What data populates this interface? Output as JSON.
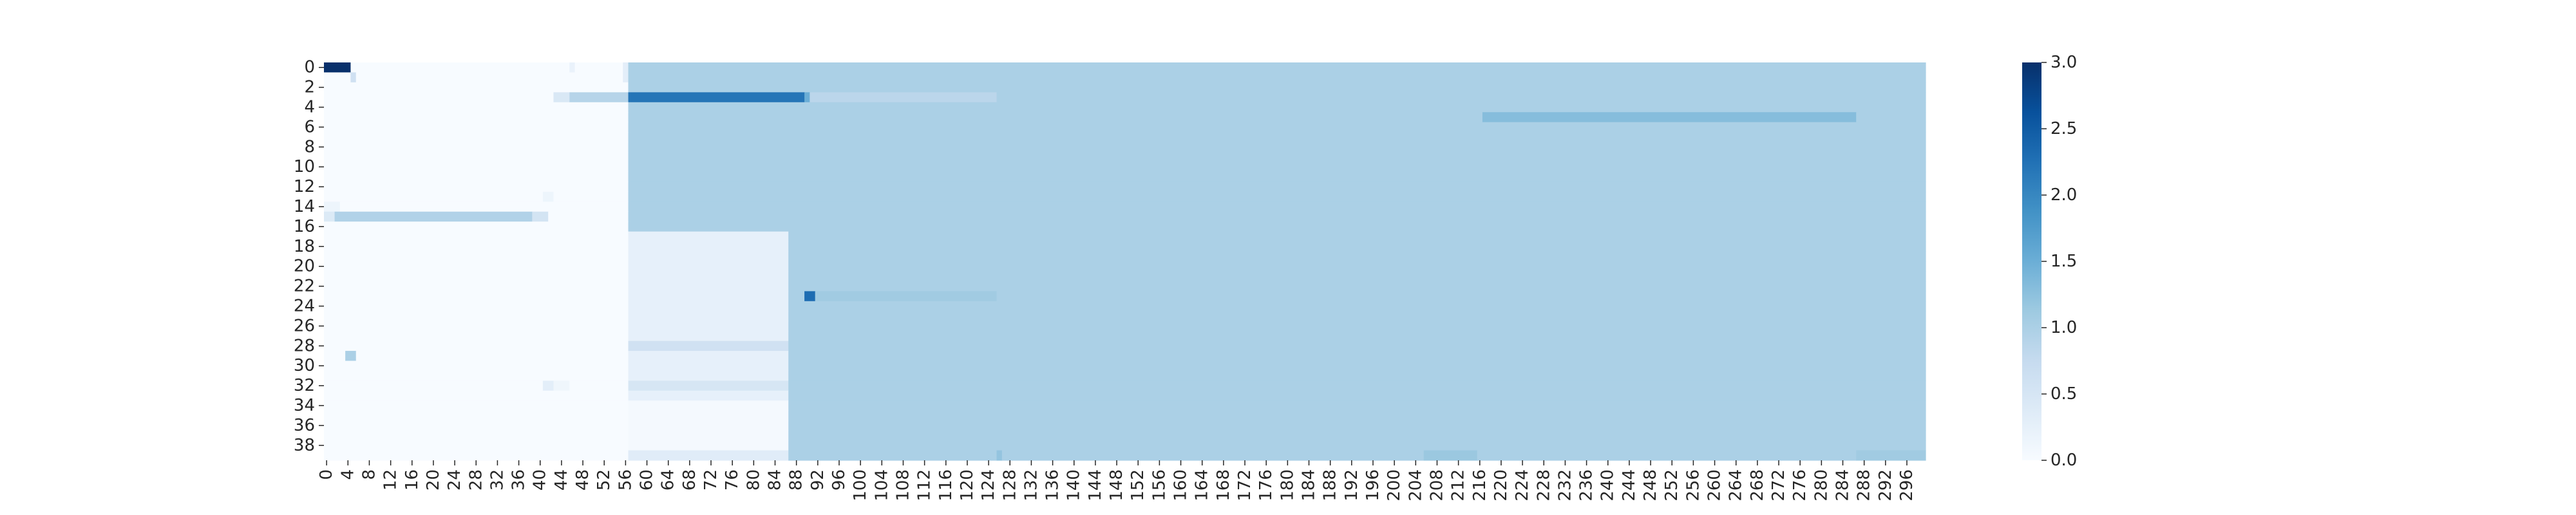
{
  "chart_data": {
    "type": "heatmap",
    "title": "",
    "xlabel": "",
    "ylabel": "",
    "n_rows": 40,
    "n_cols": 300,
    "y_ticks": [
      "0",
      "2",
      "4",
      "6",
      "8",
      "10",
      "12",
      "14",
      "16",
      "18",
      "20",
      "22",
      "24",
      "26",
      "28",
      "30",
      "32",
      "34",
      "36",
      "38"
    ],
    "x_ticks": [
      "0",
      "4",
      "8",
      "12",
      "16",
      "20",
      "24",
      "28",
      "32",
      "36",
      "40",
      "44",
      "48",
      "52",
      "56",
      "60",
      "64",
      "68",
      "72",
      "76",
      "80",
      "84",
      "88",
      "92",
      "96",
      "100",
      "104",
      "108",
      "112",
      "116",
      "120",
      "124",
      "128",
      "132",
      "136",
      "140",
      "144",
      "148",
      "152",
      "156",
      "160",
      "164",
      "168",
      "172",
      "176",
      "180",
      "184",
      "188",
      "192",
      "196",
      "200",
      "204",
      "208",
      "212",
      "216",
      "220",
      "224",
      "228",
      "232",
      "236",
      "240",
      "244",
      "248",
      "252",
      "256",
      "260",
      "264",
      "268",
      "272",
      "276",
      "280",
      "284",
      "288",
      "292",
      "296"
    ],
    "colorbar": {
      "range": [
        0,
        3
      ],
      "ticks": [
        "0.0",
        "0.5",
        "1.0",
        "1.5",
        "2.0",
        "2.5",
        "3.0"
      ],
      "colormap": "Blues"
    },
    "background_value": 0.0,
    "blocks": [
      {
        "rows": [
          0,
          39
        ],
        "cols": [
          57,
          299
        ],
        "value": 1.0
      },
      {
        "rows": [
          17,
          39
        ],
        "cols": [
          57,
          86
        ],
        "value": 0.25
      },
      {
        "rows": [
          34,
          38
        ],
        "cols": [
          57,
          86
        ],
        "value": 0.05
      },
      {
        "rows": [
          39,
          39
        ],
        "cols": [
          57,
          86
        ],
        "value": 0.35
      },
      {
        "rows": [
          28,
          28
        ],
        "cols": [
          57,
          86
        ],
        "value": 0.6
      },
      {
        "rows": [
          32,
          32
        ],
        "cols": [
          57,
          86
        ],
        "value": 0.5
      },
      {
        "rows": [
          0,
          0
        ],
        "cols": [
          0,
          4
        ],
        "value": 3.0
      },
      {
        "rows": [
          1,
          1
        ],
        "cols": [
          5,
          5
        ],
        "value": 0.6
      },
      {
        "rows": [
          0,
          0
        ],
        "cols": [
          46,
          46
        ],
        "value": 0.2
      },
      {
        "rows": [
          0,
          1
        ],
        "cols": [
          56,
          56
        ],
        "value": 0.3
      },
      {
        "rows": [
          3,
          3
        ],
        "cols": [
          43,
          45
        ],
        "value": 0.45
      },
      {
        "rows": [
          3,
          3
        ],
        "cols": [
          46,
          56
        ],
        "value": 0.9
      },
      {
        "rows": [
          3,
          3
        ],
        "cols": [
          57,
          89
        ],
        "value": 2.2
      },
      {
        "rows": [
          3,
          3
        ],
        "cols": [
          90,
          90
        ],
        "value": 1.5
      },
      {
        "rows": [
          3,
          3
        ],
        "cols": [
          91,
          125
        ],
        "value": 0.85
      },
      {
        "rows": [
          5,
          5
        ],
        "cols": [
          217,
          286
        ],
        "value": 1.3
      },
      {
        "rows": [
          13,
          13
        ],
        "cols": [
          41,
          42
        ],
        "value": 0.15
      },
      {
        "rows": [
          14,
          14
        ],
        "cols": [
          0,
          2
        ],
        "value": 0.15
      },
      {
        "rows": [
          15,
          15
        ],
        "cols": [
          0,
          1
        ],
        "value": 0.4
      },
      {
        "rows": [
          15,
          15
        ],
        "cols": [
          2,
          38
        ],
        "value": 0.95
      },
      {
        "rows": [
          15,
          15
        ],
        "cols": [
          39,
          41
        ],
        "value": 0.55
      },
      {
        "rows": [
          23,
          23
        ],
        "cols": [
          90,
          91
        ],
        "value": 2.3
      },
      {
        "rows": [
          23,
          23
        ],
        "cols": [
          92,
          125
        ],
        "value": 1.1
      },
      {
        "rows": [
          29,
          29
        ],
        "cols": [
          4,
          5
        ],
        "value": 1.0
      },
      {
        "rows": [
          32,
          32
        ],
        "cols": [
          41,
          42
        ],
        "value": 0.3
      },
      {
        "rows": [
          32,
          32
        ],
        "cols": [
          43,
          45
        ],
        "value": 0.12
      },
      {
        "rows": [
          39,
          39
        ],
        "cols": [
          126,
          126
        ],
        "value": 1.2
      },
      {
        "rows": [
          39,
          39
        ],
        "cols": [
          206,
          215
        ],
        "value": 1.15
      },
      {
        "rows": [
          39,
          39
        ],
        "cols": [
          287,
          299
        ],
        "value": 1.1
      }
    ]
  }
}
